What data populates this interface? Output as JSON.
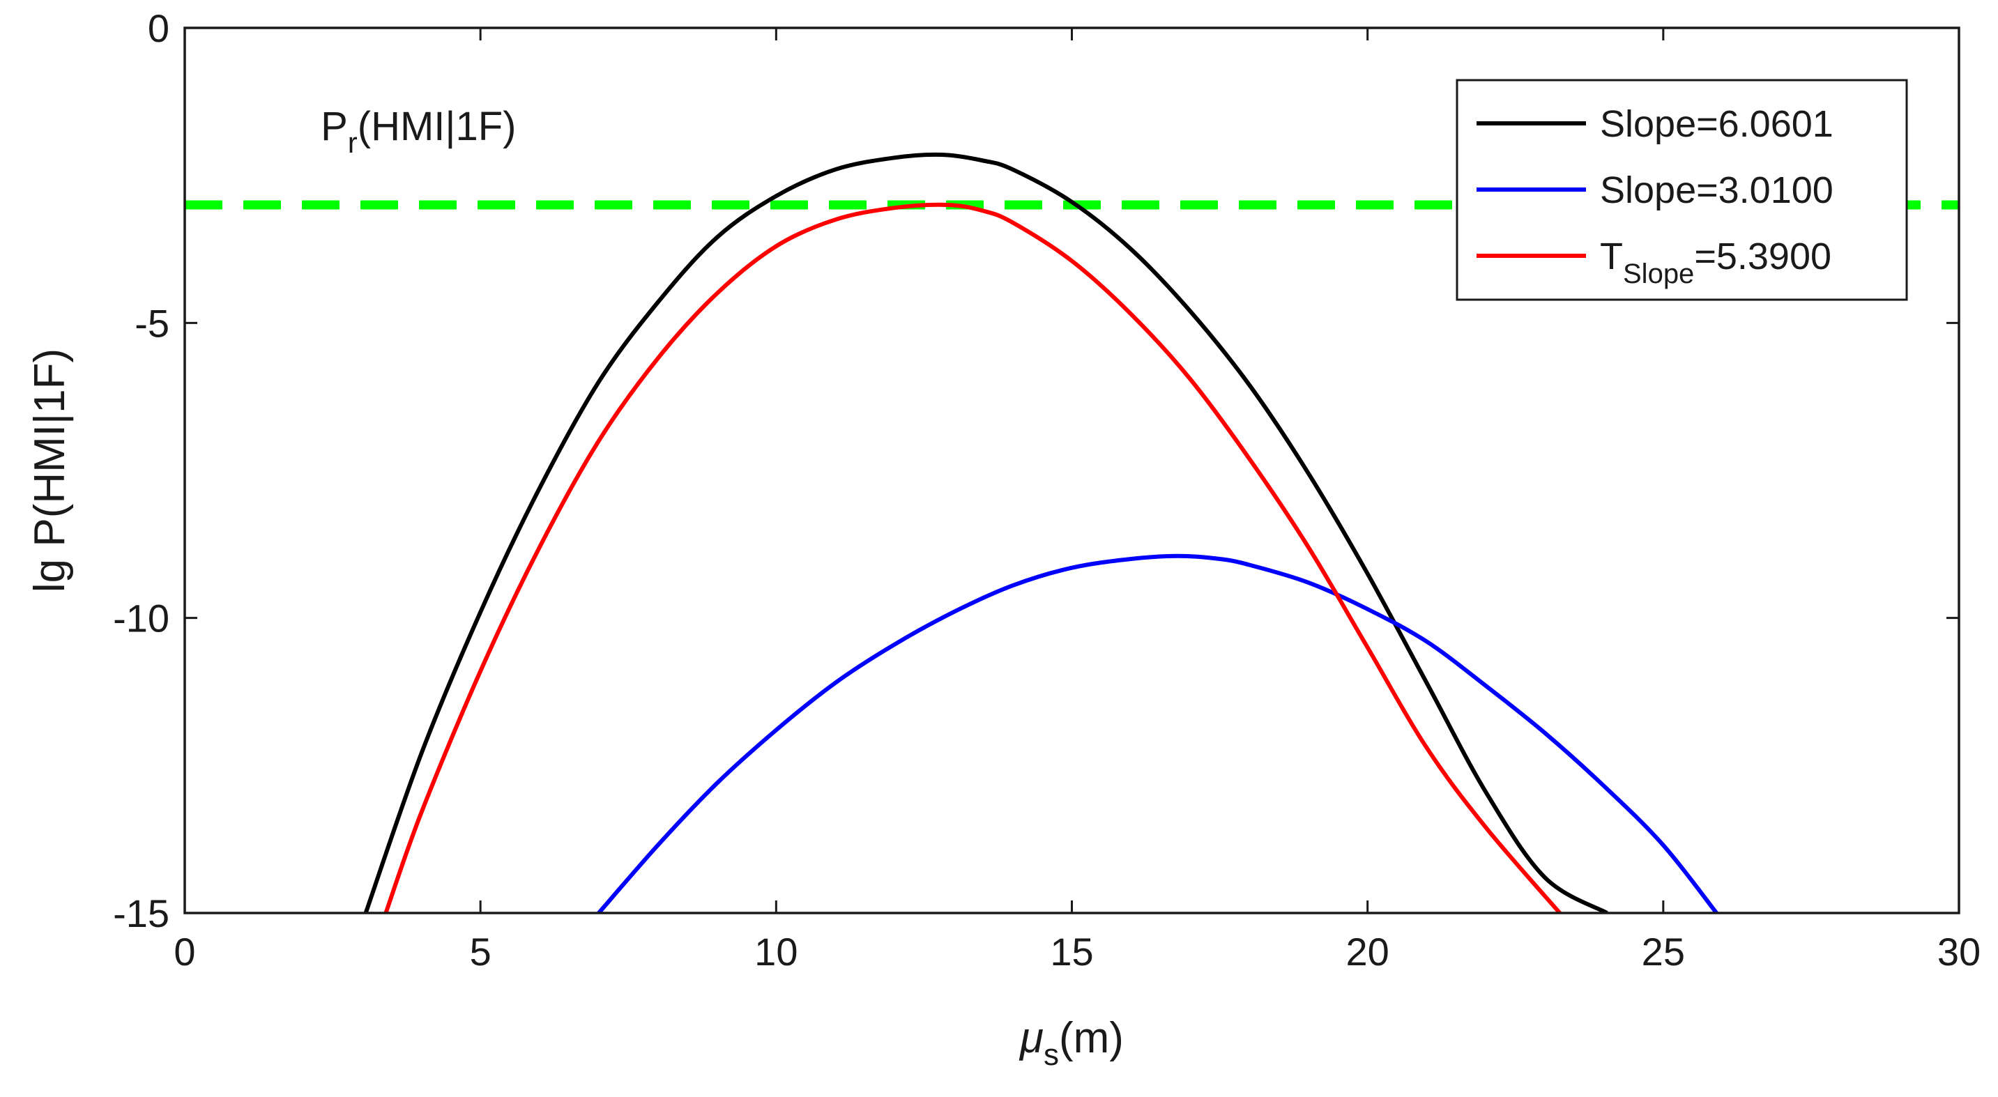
{
  "chart_data": {
    "type": "line",
    "title": "",
    "xlabel": {
      "symbol": "μ",
      "subscript": "s",
      "unit": "(m)"
    },
    "ylabel": "lg P(HMI|1F)",
    "xlim": [
      0,
      30
    ],
    "ylim": [
      -15,
      0
    ],
    "xticks": [
      0,
      5,
      10,
      15,
      20,
      25,
      30
    ],
    "xtick_labels": [
      "0",
      "5",
      "10",
      "15",
      "20",
      "25",
      "30"
    ],
    "yticks": [
      0,
      -5,
      -10,
      -15
    ],
    "ytick_labels": [
      "0",
      "-5",
      "-10",
      "-15"
    ],
    "grid": false,
    "legend_position": "top-right",
    "series": [
      {
        "name": "Slope=6.0601",
        "legend": {
          "main": "Slope=6.0601",
          "subscript": "",
          "suffix": ""
        },
        "color": "#000000",
        "style": "solid",
        "x": [
          3.06,
          4,
          5,
          6,
          7,
          8,
          9,
          10,
          11,
          12,
          12.8,
          13.5,
          14,
          15,
          16,
          17,
          18,
          19,
          20,
          21,
          22,
          23,
          24.05
        ],
        "y": [
          -15,
          -12.3,
          -9.9,
          -7.8,
          -6.0,
          -4.65,
          -3.55,
          -2.85,
          -2.4,
          -2.2,
          -2.15,
          -2.25,
          -2.4,
          -2.95,
          -3.75,
          -4.8,
          -6.05,
          -7.55,
          -9.25,
          -11.1,
          -12.95,
          -14.4,
          -15
        ]
      },
      {
        "name": "Slope=3.0100",
        "legend": {
          "main": "Slope=3.0100",
          "subscript": "",
          "suffix": ""
        },
        "color": "#0000ff",
        "style": "solid",
        "x": [
          7.0,
          8,
          9,
          10,
          11,
          12,
          13,
          14,
          15,
          16,
          16.8,
          17.5,
          18,
          19,
          20,
          21,
          22,
          23,
          24,
          25,
          25.9
        ],
        "y": [
          -15,
          -13.85,
          -12.8,
          -11.9,
          -11.1,
          -10.45,
          -9.9,
          -9.45,
          -9.15,
          -9.0,
          -8.95,
          -9.0,
          -9.1,
          -9.4,
          -9.85,
          -10.4,
          -11.15,
          -11.95,
          -12.85,
          -13.85,
          -15
        ]
      },
      {
        "name": "TSlope=5.3900",
        "legend": {
          "main": "T",
          "subscript": "Slope",
          "suffix": "=5.3900"
        },
        "color": "#ff0000",
        "style": "solid",
        "x": [
          3.4,
          4,
          5,
          6,
          7,
          8,
          9,
          10,
          11,
          12,
          12.9,
          13.5,
          14,
          15,
          16,
          17,
          18,
          19,
          20,
          21,
          22,
          23.25
        ],
        "y": [
          -15,
          -13.3,
          -10.9,
          -8.8,
          -7.0,
          -5.6,
          -4.5,
          -3.7,
          -3.25,
          -3.05,
          -3.0,
          -3.1,
          -3.3,
          -3.95,
          -4.85,
          -5.95,
          -7.3,
          -8.8,
          -10.5,
          -12.2,
          -13.55,
          -15
        ]
      },
      {
        "name": "Pr(HMI|1F)",
        "color": "#00ff00",
        "style": "dashed",
        "x": [
          0,
          30
        ],
        "y": [
          -3,
          -3
        ]
      }
    ],
    "annotations": [
      {
        "main": "P",
        "subscript": "r",
        "suffix": "(HMI|1F)",
        "x": 2.3,
        "y": -1.9
      }
    ]
  }
}
